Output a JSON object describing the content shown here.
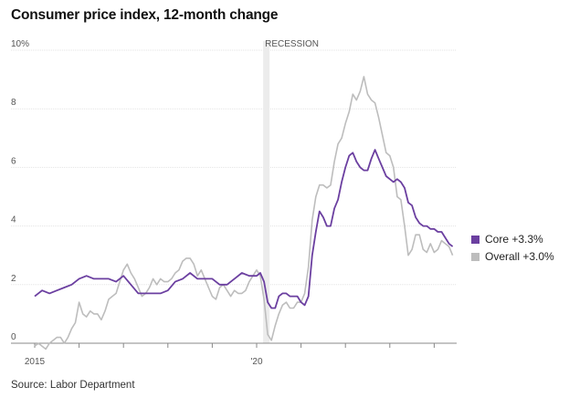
{
  "title": "Consumer price index, 12-month change",
  "source": "Source: Labor Department",
  "chart_data": {
    "type": "line",
    "title": "Consumer price index, 12-month change",
    "xlabel": "",
    "ylabel": "",
    "ylim": [
      0,
      10
    ],
    "xlim": [
      "2015-01",
      "2024-01"
    ],
    "y_ticks": [
      "0",
      "2",
      "4",
      "6",
      "8",
      "10%"
    ],
    "y_tick_values": [
      0,
      2,
      4,
      6,
      8,
      10
    ],
    "x_tick_labels": [
      {
        "date": "2015-01",
        "label": "2015"
      },
      {
        "date": "2020-01",
        "label": "'20"
      }
    ],
    "x_minor_ticks": [
      "2016-01",
      "2017-01",
      "2018-01",
      "2019-01",
      "2021-01",
      "2022-01",
      "2023-01",
      "2024-01"
    ],
    "grid": "horizontal",
    "legend_position": "right",
    "annotations": [
      {
        "type": "shaded-band",
        "from": "2020-03",
        "to": "2020-04",
        "label": "RECESSION"
      }
    ],
    "series": [
      {
        "name": "Core +3.3%",
        "color": "#6b3fa0",
        "points": [
          [
            "2015-01",
            1.6
          ],
          [
            "2015-03",
            1.8
          ],
          [
            "2015-05",
            1.7
          ],
          [
            "2015-07",
            1.8
          ],
          [
            "2015-09",
            1.9
          ],
          [
            "2015-11",
            2.0
          ],
          [
            "2016-01",
            2.2
          ],
          [
            "2016-03",
            2.3
          ],
          [
            "2016-05",
            2.2
          ],
          [
            "2016-07",
            2.2
          ],
          [
            "2016-09",
            2.2
          ],
          [
            "2016-11",
            2.1
          ],
          [
            "2017-01",
            2.3
          ],
          [
            "2017-03",
            2.0
          ],
          [
            "2017-05",
            1.7
          ],
          [
            "2017-07",
            1.7
          ],
          [
            "2017-09",
            1.7
          ],
          [
            "2017-11",
            1.7
          ],
          [
            "2018-01",
            1.8
          ],
          [
            "2018-03",
            2.1
          ],
          [
            "2018-05",
            2.2
          ],
          [
            "2018-07",
            2.4
          ],
          [
            "2018-09",
            2.2
          ],
          [
            "2018-11",
            2.2
          ],
          [
            "2019-01",
            2.2
          ],
          [
            "2019-03",
            2.0
          ],
          [
            "2019-05",
            2.0
          ],
          [
            "2019-07",
            2.2
          ],
          [
            "2019-09",
            2.4
          ],
          [
            "2019-11",
            2.3
          ],
          [
            "2020-01",
            2.3
          ],
          [
            "2020-02",
            2.4
          ],
          [
            "2020-03",
            2.1
          ],
          [
            "2020-04",
            1.4
          ],
          [
            "2020-05",
            1.2
          ],
          [
            "2020-06",
            1.2
          ],
          [
            "2020-07",
            1.6
          ],
          [
            "2020-08",
            1.7
          ],
          [
            "2020-09",
            1.7
          ],
          [
            "2020-10",
            1.6
          ],
          [
            "2020-11",
            1.6
          ],
          [
            "2020-12",
            1.6
          ],
          [
            "2021-01",
            1.4
          ],
          [
            "2021-02",
            1.3
          ],
          [
            "2021-03",
            1.6
          ],
          [
            "2021-04",
            3.0
          ],
          [
            "2021-05",
            3.8
          ],
          [
            "2021-06",
            4.5
          ],
          [
            "2021-07",
            4.3
          ],
          [
            "2021-08",
            4.0
          ],
          [
            "2021-09",
            4.0
          ],
          [
            "2021-10",
            4.6
          ],
          [
            "2021-11",
            4.9
          ],
          [
            "2021-12",
            5.5
          ],
          [
            "2022-01",
            6.0
          ],
          [
            "2022-02",
            6.4
          ],
          [
            "2022-03",
            6.5
          ],
          [
            "2022-04",
            6.2
          ],
          [
            "2022-05",
            6.0
          ],
          [
            "2022-06",
            5.9
          ],
          [
            "2022-07",
            5.9
          ],
          [
            "2022-08",
            6.3
          ],
          [
            "2022-09",
            6.6
          ],
          [
            "2022-10",
            6.3
          ],
          [
            "2022-11",
            6.0
          ],
          [
            "2022-12",
            5.7
          ],
          [
            "2023-01",
            5.6
          ],
          [
            "2023-02",
            5.5
          ],
          [
            "2023-03",
            5.6
          ],
          [
            "2023-04",
            5.5
          ],
          [
            "2023-05",
            5.3
          ],
          [
            "2023-06",
            4.8
          ],
          [
            "2023-07",
            4.7
          ],
          [
            "2023-08",
            4.3
          ],
          [
            "2023-09",
            4.1
          ],
          [
            "2023-10",
            4.0
          ],
          [
            "2023-11",
            4.0
          ],
          [
            "2023-12",
            3.9
          ],
          [
            "2024-01",
            3.9
          ],
          [
            "2024-02",
            3.8
          ],
          [
            "2024-03",
            3.8
          ],
          [
            "2024-04",
            3.6
          ],
          [
            "2024-05",
            3.4
          ],
          [
            "2024-06",
            3.3
          ]
        ]
      },
      {
        "name": "Overall +3.0%",
        "color": "#bdbdbd",
        "points": [
          [
            "2015-01",
            -0.1
          ],
          [
            "2015-02",
            0.0
          ],
          [
            "2015-03",
            -0.1
          ],
          [
            "2015-04",
            -0.2
          ],
          [
            "2015-05",
            0.0
          ],
          [
            "2015-06",
            0.1
          ],
          [
            "2015-07",
            0.2
          ],
          [
            "2015-08",
            0.2
          ],
          [
            "2015-09",
            0.0
          ],
          [
            "2015-10",
            0.2
          ],
          [
            "2015-11",
            0.5
          ],
          [
            "2015-12",
            0.7
          ],
          [
            "2016-01",
            1.4
          ],
          [
            "2016-02",
            1.0
          ],
          [
            "2016-03",
            0.9
          ],
          [
            "2016-04",
            1.1
          ],
          [
            "2016-05",
            1.0
          ],
          [
            "2016-06",
            1.0
          ],
          [
            "2016-07",
            0.8
          ],
          [
            "2016-08",
            1.1
          ],
          [
            "2016-09",
            1.5
          ],
          [
            "2016-10",
            1.6
          ],
          [
            "2016-11",
            1.7
          ],
          [
            "2016-12",
            2.1
          ],
          [
            "2017-01",
            2.5
          ],
          [
            "2017-02",
            2.7
          ],
          [
            "2017-03",
            2.4
          ],
          [
            "2017-04",
            2.2
          ],
          [
            "2017-05",
            1.9
          ],
          [
            "2017-06",
            1.6
          ],
          [
            "2017-07",
            1.7
          ],
          [
            "2017-08",
            1.9
          ],
          [
            "2017-09",
            2.2
          ],
          [
            "2017-10",
            2.0
          ],
          [
            "2017-11",
            2.2
          ],
          [
            "2017-12",
            2.1
          ],
          [
            "2018-01",
            2.1
          ],
          [
            "2018-02",
            2.2
          ],
          [
            "2018-03",
            2.4
          ],
          [
            "2018-04",
            2.5
          ],
          [
            "2018-05",
            2.8
          ],
          [
            "2018-06",
            2.9
          ],
          [
            "2018-07",
            2.9
          ],
          [
            "2018-08",
            2.7
          ],
          [
            "2018-09",
            2.3
          ],
          [
            "2018-10",
            2.5
          ],
          [
            "2018-11",
            2.2
          ],
          [
            "2018-12",
            1.9
          ],
          [
            "2019-01",
            1.6
          ],
          [
            "2019-02",
            1.5
          ],
          [
            "2019-03",
            1.9
          ],
          [
            "2019-04",
            2.0
          ],
          [
            "2019-05",
            1.8
          ],
          [
            "2019-06",
            1.6
          ],
          [
            "2019-07",
            1.8
          ],
          [
            "2019-08",
            1.7
          ],
          [
            "2019-09",
            1.7
          ],
          [
            "2019-10",
            1.8
          ],
          [
            "2019-11",
            2.1
          ],
          [
            "2019-12",
            2.3
          ],
          [
            "2020-01",
            2.5
          ],
          [
            "2020-02",
            2.3
          ],
          [
            "2020-03",
            1.5
          ],
          [
            "2020-04",
            0.3
          ],
          [
            "2020-05",
            0.1
          ],
          [
            "2020-06",
            0.6
          ],
          [
            "2020-07",
            1.0
          ],
          [
            "2020-08",
            1.3
          ],
          [
            "2020-09",
            1.4
          ],
          [
            "2020-10",
            1.2
          ],
          [
            "2020-11",
            1.2
          ],
          [
            "2020-12",
            1.4
          ],
          [
            "2021-01",
            1.4
          ],
          [
            "2021-02",
            1.7
          ],
          [
            "2021-03",
            2.6
          ],
          [
            "2021-04",
            4.2
          ],
          [
            "2021-05",
            5.0
          ],
          [
            "2021-06",
            5.4
          ],
          [
            "2021-07",
            5.4
          ],
          [
            "2021-08",
            5.3
          ],
          [
            "2021-09",
            5.4
          ],
          [
            "2021-10",
            6.2
          ],
          [
            "2021-11",
            6.8
          ],
          [
            "2021-12",
            7.0
          ],
          [
            "2022-01",
            7.5
          ],
          [
            "2022-02",
            7.9
          ],
          [
            "2022-03",
            8.5
          ],
          [
            "2022-04",
            8.3
          ],
          [
            "2022-05",
            8.6
          ],
          [
            "2022-06",
            9.1
          ],
          [
            "2022-07",
            8.5
          ],
          [
            "2022-08",
            8.3
          ],
          [
            "2022-09",
            8.2
          ],
          [
            "2022-10",
            7.7
          ],
          [
            "2022-11",
            7.1
          ],
          [
            "2022-12",
            6.5
          ],
          [
            "2023-01",
            6.4
          ],
          [
            "2023-02",
            6.0
          ],
          [
            "2023-03",
            5.0
          ],
          [
            "2023-04",
            4.9
          ],
          [
            "2023-05",
            4.0
          ],
          [
            "2023-06",
            3.0
          ],
          [
            "2023-07",
            3.2
          ],
          [
            "2023-08",
            3.7
          ],
          [
            "2023-09",
            3.7
          ],
          [
            "2023-10",
            3.2
          ],
          [
            "2023-11",
            3.1
          ],
          [
            "2023-12",
            3.4
          ],
          [
            "2024-01",
            3.1
          ],
          [
            "2024-02",
            3.2
          ],
          [
            "2024-03",
            3.5
          ],
          [
            "2024-04",
            3.4
          ],
          [
            "2024-05",
            3.3
          ],
          [
            "2024-06",
            3.0
          ]
        ]
      }
    ]
  }
}
